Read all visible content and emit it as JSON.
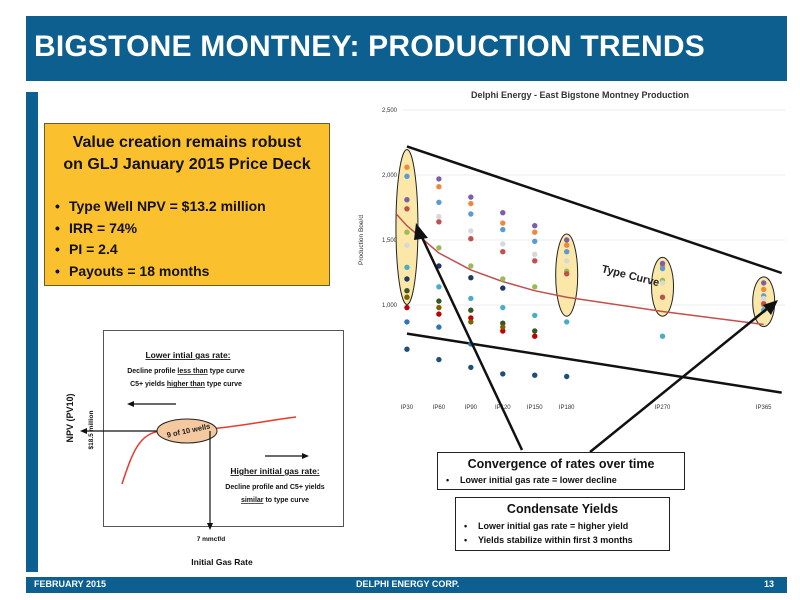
{
  "header": {
    "title": "BIGSTONE MONTNEY:  PRODUCTION TRENDS"
  },
  "footer": {
    "date": "FEBRUARY 2015",
    "company": "DELPHI ENERGY CORP.",
    "page": "13"
  },
  "value_box": {
    "title_line1": "Value creation remains  robust",
    "title_line2": "on GLJ January 2015 Price Deck",
    "bullets": [
      "Type Well NPV = $13.2 million",
      "IRR = 74%",
      "PI = 2.4",
      "Payouts = 18 months"
    ]
  },
  "npv_chart": {
    "ylabel": "NPV (PV10)",
    "xlabel": "Initial Gas Rate",
    "y_marker": "$18.5 million",
    "x_marker": "7 mmcf/d",
    "ellipse_label": "9 of 10 wells",
    "lower_title": "Lower intial gas rate:",
    "lower_line1_pre": "Decline profile ",
    "lower_line1_u": "less than",
    "lower_line1_post": " type curve",
    "lower_line2_pre": "C5+ yields ",
    "lower_line2_u": "higher than",
    "lower_line2_post": " type curve",
    "higher_title": "Higher initial gas rate:",
    "higher_line1": "Decline profile and C5+ yields",
    "higher_line2_u": "similar",
    "higher_line2_post": " to type curve"
  },
  "convergence_box": {
    "title": "Convergence of rates over time",
    "bullets": [
      "Lower initial gas rate =  lower decline"
    ]
  },
  "condensate_box": {
    "title": "Condensate Yields",
    "bullets": [
      "Lower initial gas rate =  higher yield",
      "Yields stabilize within first 3 months"
    ]
  },
  "chart_data": {
    "type": "scatter",
    "title": "Delphi Energy - East Bigstone Montney Production",
    "ylabel": "Production Boe/d",
    "ylim": [
      500,
      2500
    ],
    "yticks": [
      1000,
      1500,
      2000,
      2500
    ],
    "ytick_labels": [
      "1,000",
      "1,500",
      "2,000",
      "2,500"
    ],
    "categories": [
      "IP30",
      "IP60",
      "IP90",
      "IP120",
      "IP150",
      "IP180",
      "IP270",
      "IP365"
    ],
    "category_days": [
      30,
      60,
      90,
      120,
      150,
      180,
      270,
      365
    ],
    "series": [
      {
        "color": "#f0883b",
        "values": [
          2060,
          1910,
          1780,
          1630,
          1560,
          1460,
          1300,
          1120
        ]
      },
      {
        "color": "#5b9bd5",
        "values": [
          1990,
          1790,
          1700,
          1580,
          1490,
          1410,
          1280,
          1070
        ]
      },
      {
        "color": "#7c5fa8",
        "values": [
          1810,
          1970,
          1830,
          1710,
          1610,
          1500,
          1320,
          1170
        ]
      },
      {
        "color": "#9bbb59",
        "values": [
          1560,
          1440,
          1300,
          1200,
          1140,
          1260,
          1190,
          1000
        ]
      },
      {
        "color": "#4bacc6",
        "values": [
          1290,
          1140,
          1050,
          980,
          920,
          870,
          760,
          960
        ]
      },
      {
        "color": "#c0504d",
        "values": [
          1740,
          1640,
          1510,
          1410,
          1340,
          1240,
          1060,
          1010
        ]
      },
      {
        "color": "#d8d8d8",
        "values": [
          1460,
          1680,
          1570,
          1470,
          1390,
          1340,
          1170,
          1050
        ]
      },
      {
        "color": "#1f4e79",
        "values": [
          660,
          580,
          520,
          470,
          460,
          450,
          null,
          null
        ]
      },
      {
        "color": "#2e75b6",
        "values": [
          870,
          830,
          700,
          null,
          null,
          null,
          null,
          null
        ]
      },
      {
        "color": "#c00000",
        "values": [
          980,
          930,
          900,
          800,
          760,
          null,
          null,
          null
        ]
      },
      {
        "color": "#375623",
        "values": [
          1110,
          1030,
          960,
          860,
          800,
          null,
          null,
          null
        ]
      },
      {
        "color": "#7f6000",
        "values": [
          1060,
          980,
          870,
          830,
          null,
          null,
          null,
          null
        ]
      },
      {
        "color": "#203864",
        "values": [
          1200,
          1300,
          1210,
          1130,
          null,
          null,
          null,
          null
        ]
      }
    ],
    "type_curve": {
      "label": "Type Curve",
      "x": [
        20,
        30,
        60,
        90,
        120,
        150,
        180,
        270,
        365
      ],
      "y": [
        1700,
        1610,
        1400,
        1270,
        1180,
        1110,
        1060,
        950,
        850
      ]
    },
    "upper_trend": {
      "x": [
        30,
        365
      ],
      "y": [
        2220,
        1300
      ]
    },
    "lower_trend": {
      "x": [
        30,
        365
      ],
      "y": [
        780,
        380
      ]
    }
  }
}
